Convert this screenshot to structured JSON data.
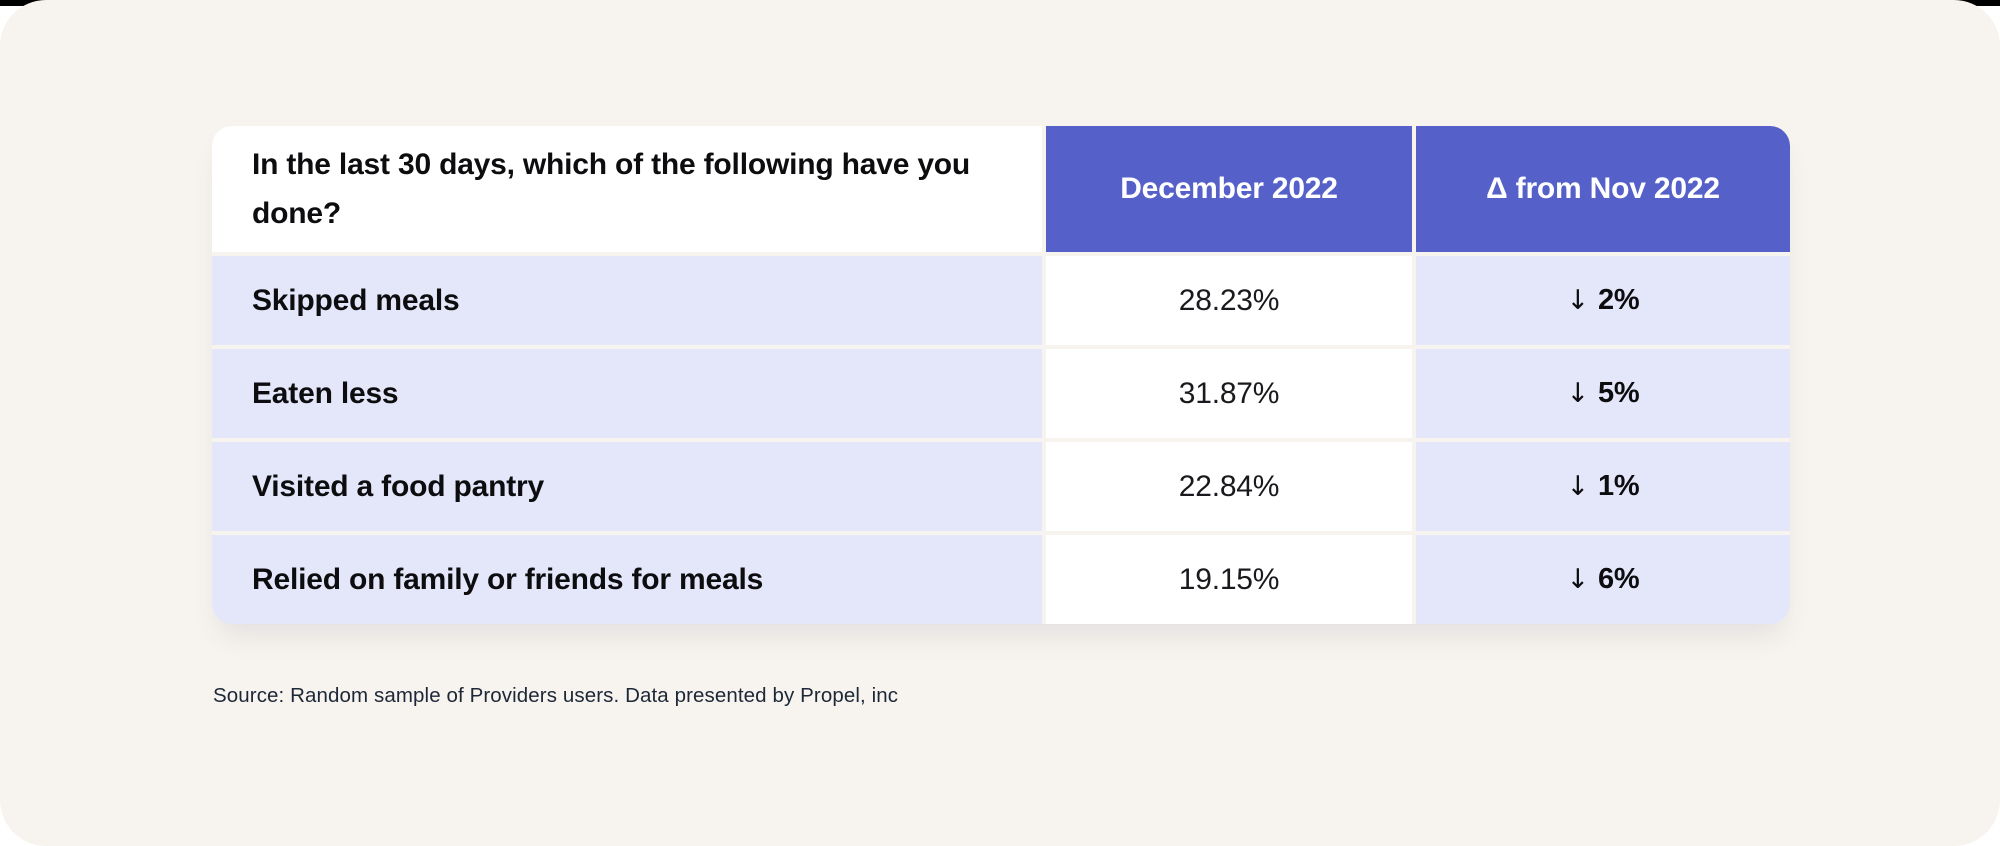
{
  "colors": {
    "canvas": "#f7f4ef",
    "header_purple": "#5560c8",
    "row_lavender": "#e4e6fa",
    "cell_white": "#ffffff",
    "text_dark": "#0d0d10",
    "source_text": "#1d2737"
  },
  "table": {
    "question": "In the last 30 days, which of the following have you done?",
    "columns": {
      "december": "December 2022",
      "delta": "Δ from Nov 2022"
    },
    "rows": [
      {
        "label": "Skipped meals",
        "december": "28.23%",
        "delta_arrow": "↓",
        "delta_value": "2%"
      },
      {
        "label": "Eaten less",
        "december": "31.87%",
        "delta_arrow": "↓",
        "delta_value": "5%"
      },
      {
        "label": "Visited a food pantry",
        "december": "22.84%",
        "delta_arrow": "↓",
        "delta_value": "1%"
      },
      {
        "label": "Relied on family or friends for meals",
        "december": "19.15%",
        "delta_arrow": "↓",
        "delta_value": "6%"
      }
    ]
  },
  "source": "Source: Random sample of Providers users. Data presented by Propel, inc",
  "chart_data": {
    "type": "table",
    "title": "In the last 30 days, which of the following have you done?",
    "columns": [
      "December 2022",
      "Δ from Nov 2022"
    ],
    "categories": [
      "Skipped meals",
      "Eaten less",
      "Visited a food pantry",
      "Relied on family or friends for meals"
    ],
    "series": [
      {
        "name": "December 2022 (%)",
        "values": [
          28.23,
          31.87,
          22.84,
          19.15
        ]
      },
      {
        "name": "Δ from Nov 2022 (%)",
        "values": [
          -2,
          -5,
          -1,
          -6
        ]
      }
    ],
    "source": "Source: Random sample of Providers users. Data presented by Propel, inc"
  }
}
